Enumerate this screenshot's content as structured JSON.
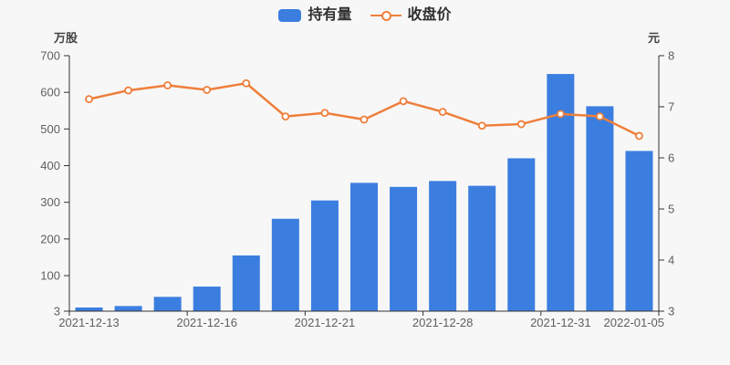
{
  "window": {
    "background": "#f7f7f7"
  },
  "legend": {
    "items": [
      {
        "label": "持有量",
        "type": "bar",
        "color": "#3b7ee0"
      },
      {
        "label": "收盘价",
        "type": "line",
        "color": "#ee7f3c"
      }
    ]
  },
  "chart_data": {
    "type": "bar+line",
    "point_count": 15,
    "x_axis": {
      "labels": [
        {
          "index": 0,
          "text": "2021-12-13"
        },
        {
          "index": 3,
          "text": "2021-12-16"
        },
        {
          "index": 6,
          "text": "2021-12-21"
        },
        {
          "index": 9,
          "text": "2021-12-28"
        },
        {
          "index": 12,
          "text": "2021-12-31"
        },
        {
          "index": 14,
          "text": "2022-01-05"
        }
      ],
      "tick_boundary_indices": [
        3,
        6,
        9,
        12
      ]
    },
    "left_axis": {
      "name": "万股",
      "min": 3,
      "max": 700,
      "ticks": [
        700,
        600,
        500,
        400,
        300,
        200,
        100,
        3
      ]
    },
    "right_axis": {
      "name": "元",
      "min": 3,
      "max": 8,
      "ticks": [
        8,
        7,
        6,
        5,
        4,
        3
      ]
    },
    "series": [
      {
        "name": "持有量",
        "type": "bar",
        "axis": "left",
        "unit": "万股",
        "color": "#3b7ee0",
        "values": [
          13,
          17,
          42,
          70,
          155,
          255,
          305,
          353,
          342,
          358,
          345,
          420,
          650,
          562,
          440
        ]
      },
      {
        "name": "收盘价",
        "type": "line",
        "axis": "right",
        "unit": "元",
        "color": "#ee7f3c",
        "marker": "hollow-circle",
        "values": [
          7.15,
          7.32,
          7.42,
          7.33,
          7.46,
          6.81,
          6.88,
          6.75,
          7.11,
          6.9,
          6.63,
          6.66,
          6.86,
          6.81,
          6.43
        ]
      }
    ],
    "legend_position": "top-center",
    "grid": "off"
  },
  "colors": {
    "axis_line": "#333333",
    "tick_text": "#5f5f5f",
    "background": "#f7f7f7"
  }
}
